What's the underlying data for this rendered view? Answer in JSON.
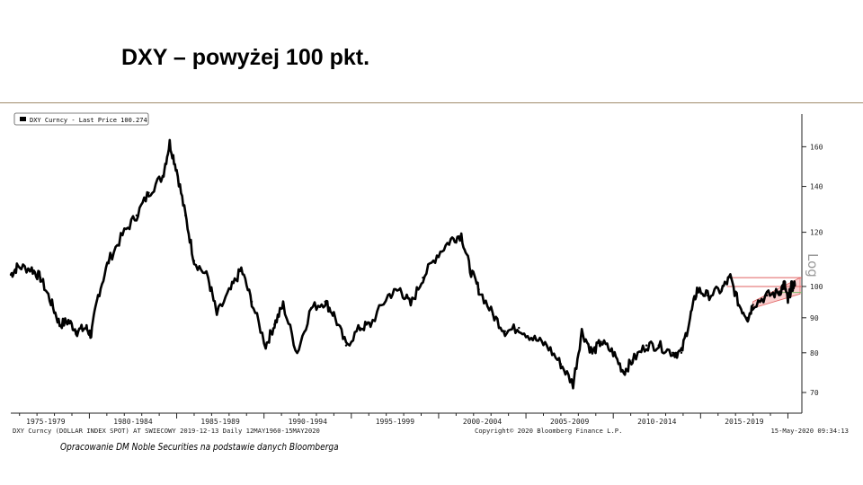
{
  "title": "DXY – powyżej 100 pkt.",
  "credit": "Opracowanie DM Noble Securities  na podstawie danych Bloomberga",
  "chart_data": {
    "type": "line",
    "legend": {
      "label": "DXY Curncy - Last Price",
      "value": "100.274",
      "position": "top-left"
    },
    "scale_label": "Log",
    "footer_left": "DXY Curncy (DOLLAR INDEX SPOT) AT SWIECOWY 2019-12-13  Daily 12MAY1960-15MAY2020",
    "footer_mid": "Copyright© 2020 Bloomberg Finance L.P.",
    "footer_right": "15-May-2020 09:34:13",
    "x_tick_labels": [
      "1975-1979",
      "1980-1984",
      "1985-1989",
      "1990-1994",
      "1995-1999",
      "2000-2004",
      "2005-2009",
      "2010-2014",
      "2015-2019"
    ],
    "x_tick_centers": [
      1977.5,
      1982.5,
      1987.5,
      1992.5,
      1997.5,
      2002.5,
      2007.5,
      2012.5,
      2017.5
    ],
    "xlim": [
      1975.5,
      2020.8
    ],
    "y_scale": "log",
    "ylim": [
      66,
      175
    ],
    "y_ticks": [
      70,
      80,
      90,
      100,
      120,
      140,
      160
    ],
    "series": [
      {
        "name": "DXY Curncy",
        "x": [
          1975.5,
          1975.9,
          1976.7,
          1977.2,
          1977.8,
          1978.3,
          1978.8,
          1979.3,
          1979.8,
          1980.1,
          1980.5,
          1981.1,
          1981.9,
          1982.7,
          1983.4,
          1984.2,
          1984.6,
          1985.0,
          1985.5,
          1986.0,
          1986.8,
          1987.3,
          1988.1,
          1988.7,
          1989.3,
          1990.1,
          1990.6,
          1991.1,
          1991.9,
          1992.7,
          1993.5,
          1994.0,
          1994.7,
          1995.5,
          1996.1,
          1997.1,
          1997.8,
          1998.4,
          1999.1,
          1999.9,
          2000.7,
          2001.3,
          2001.8,
          2002.3,
          2003.1,
          2003.8,
          2004.6,
          2005.4,
          2006.2,
          2007.0,
          2007.7,
          2008.2,
          2008.8,
          2009.3,
          2010.0,
          2010.6,
          2011.1,
          2011.9,
          2012.6,
          2013.4,
          2013.9,
          2014.4,
          2014.8,
          2015.4,
          2016.2,
          2016.7,
          2017.2,
          2017.7,
          2018.0,
          2018.8,
          2019.5,
          2019.8,
          2020.0,
          2020.2,
          2020.4
        ],
        "y": [
          104,
          107,
          106,
          103,
          95,
          88,
          89,
          86,
          87,
          85,
          97,
          109,
          119,
          127,
          137,
          145,
          162,
          148,
          127,
          109,
          103,
          91,
          99,
          106,
          95,
          82,
          88,
          94,
          80,
          93,
          95,
          91,
          82,
          87,
          88,
          97,
          99,
          94,
          103,
          111,
          117,
          119,
          106,
          99,
          91,
          86,
          87,
          84,
          82,
          77,
          72,
          86,
          80,
          83,
          80,
          75,
          78,
          82,
          82,
          80,
          80,
          90,
          99,
          97,
          99,
          103,
          94,
          90,
          94,
          97,
          98,
          101,
          95,
          100,
          100.274
        ]
      }
    ],
    "annotations": {
      "horizontal_levels": [
        103,
        100
      ],
      "channel": {
        "x": [
          2018.0,
          2020.7
        ],
        "lower": [
          93,
          97.5
        ],
        "upper": [
          95,
          103
        ]
      },
      "support_level": 98
    }
  }
}
